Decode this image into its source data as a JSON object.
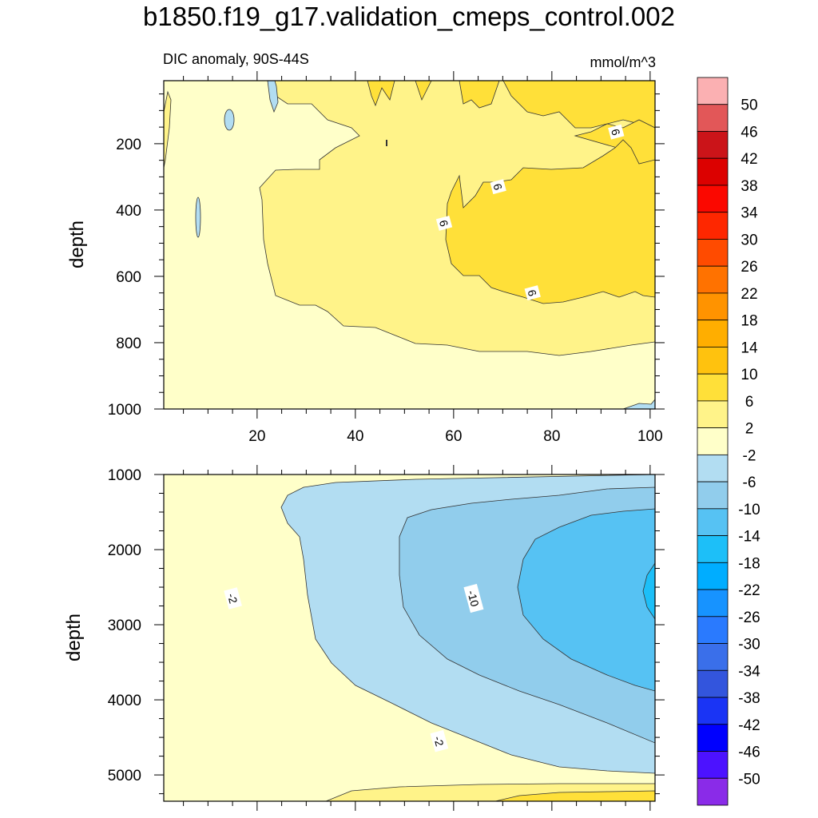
{
  "title": "b1850.f19_g17.validation_cmeps_control.002",
  "subtitle": "DIC anomaly, 90S-44S",
  "units": "mmol/m^3",
  "chart_data": [
    {
      "type": "contour",
      "panel": "upper",
      "title": "DIC anomaly, 90S-44S",
      "ylabel": "depth",
      "xlabel": "",
      "xlim": [
        1,
        101
      ],
      "ylim": [
        1000,
        10
      ],
      "xticks": [
        20,
        40,
        60,
        80,
        100
      ],
      "yticks": [
        200,
        400,
        600,
        800,
        1000
      ],
      "contour_labels": [
        {
          "text": "6",
          "x": 58,
          "y": 440
        },
        {
          "text": "6",
          "x": 69,
          "y": 330
        },
        {
          "text": "6",
          "x": 93,
          "y": 165
        },
        {
          "text": "6",
          "x": 76,
          "y": 650
        }
      ],
      "regions": [
        {
          "range": "-2 to 2",
          "x": 10,
          "y": 850
        },
        {
          "range": "2 to 6",
          "x": 40,
          "y": 500
        },
        {
          "range": "6 to 10",
          "x": 80,
          "y": 480
        },
        {
          "range": "-6 to -2",
          "x": 7,
          "y": 100
        }
      ]
    },
    {
      "type": "contour",
      "panel": "lower",
      "ylabel": "depth",
      "xlabel": "",
      "xlim": [
        1,
        101
      ],
      "ylim": [
        5350,
        1000
      ],
      "xticks": [
        20,
        40,
        60,
        80,
        100
      ],
      "yticks": [
        1000,
        2000,
        3000,
        4000,
        5000
      ],
      "contour_labels": [
        {
          "text": "-2",
          "x": 15,
          "y": 2650
        },
        {
          "text": "-10",
          "x": 64,
          "y": 2650
        },
        {
          "text": "-2",
          "x": 57,
          "y": 4550
        }
      ],
      "regions": [
        {
          "range": "-2 to 2",
          "x": 10,
          "y": 3000
        },
        {
          "range": "-6 to -2",
          "x": 35,
          "y": 3500
        },
        {
          "range": "-10 to -6",
          "x": 55,
          "y": 3000
        },
        {
          "range": "-14 to -10",
          "x": 85,
          "y": 3000
        },
        {
          "range": "-18 to -14",
          "x": 100,
          "y": 2500
        }
      ]
    }
  ],
  "colorbar": {
    "labels": [
      "50",
      "46",
      "42",
      "38",
      "34",
      "30",
      "26",
      "22",
      "18",
      "14",
      "10",
      "6",
      "2",
      "-2",
      "-6",
      "-10",
      "-14",
      "-18",
      "-22",
      "-26",
      "-30",
      "-34",
      "-38",
      "-42",
      "-46",
      "-50"
    ],
    "colors": [
      "#fbb0b2",
      "#e25758",
      "#cb1419",
      "#dc0100",
      "#fb0800",
      "#fe2700",
      "#ff4b00",
      "#ff7200",
      "#ff9300",
      "#ffae00",
      "#ffc20e",
      "#ffe039",
      "#fff389",
      "#ffffc9",
      "#b2ddf2",
      "#91cdec",
      "#56c2f3",
      "#1dbff8",
      "#00adff",
      "#1793ff",
      "#2a7afe",
      "#3a6fea",
      "#3355dd",
      "#1a34f5",
      "#0000fe",
      "#4c12ff",
      "#8a2be8"
    ]
  }
}
